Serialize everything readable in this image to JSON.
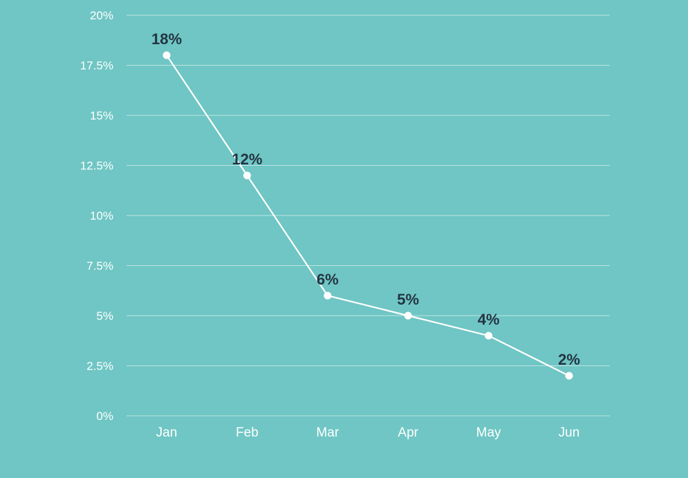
{
  "chart_data": {
    "type": "line",
    "categories": [
      "Jan",
      "Feb",
      "Mar",
      "Apr",
      "May",
      "Jun"
    ],
    "values": [
      18,
      12,
      6,
      5,
      4,
      2
    ],
    "data_labels": [
      "18%",
      "12%",
      "6%",
      "5%",
      "4%",
      "2%"
    ],
    "y_ticks": [
      0,
      2.5,
      5,
      7.5,
      10,
      12.5,
      15,
      17.5,
      20
    ],
    "y_tick_labels": [
      "0%",
      "2.5%",
      "5%",
      "7.5%",
      "10%",
      "12.5%",
      "15%",
      "17.5%",
      "20%"
    ],
    "ylim": [
      0,
      20
    ],
    "grid": true,
    "legend": "none"
  },
  "colors": {
    "background": "#6fc6c4",
    "line": "#ffffff",
    "label": "#243443"
  }
}
